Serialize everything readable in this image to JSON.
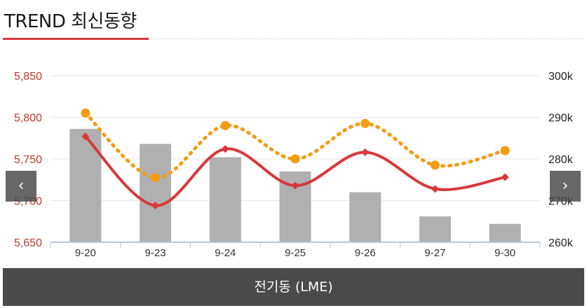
{
  "header": {
    "title": "TREND 최신동향"
  },
  "nav": {
    "prev_label": "‹",
    "next_label": "›",
    "prev_icon": "chevron-left-icon",
    "next_icon": "chevron-right-icon"
  },
  "footer": {
    "label": "전기동 (LME)"
  },
  "colors": {
    "accent": "#d8383a",
    "orange": "#f39c12",
    "bar": "#b0b0b0",
    "left_axis_text": "#c0392b"
  },
  "chart_data": {
    "type": "bar+line",
    "categories": [
      "9-20",
      "9-23",
      "9-24",
      "9-25",
      "9-26",
      "9-27",
      "9-30"
    ],
    "left_axis": {
      "ticks": [
        5650,
        5700,
        5750,
        5800,
        5850
      ],
      "tick_labels": [
        "5,650",
        "5,700",
        "5,750",
        "5,800",
        "5,850"
      ],
      "ylim": [
        5650,
        5850
      ]
    },
    "right_axis": {
      "ticks": [
        260,
        270,
        280,
        290,
        300
      ],
      "tick_labels": [
        "260k",
        "270k",
        "280k",
        "290k",
        "300k"
      ],
      "ylim": [
        260,
        300
      ]
    },
    "series": [
      {
        "type": "bar",
        "axis": "left",
        "color": "#b0b0b0",
        "values": [
          5786,
          5768,
          5752,
          5735,
          5710,
          5681,
          5672
        ]
      },
      {
        "type": "line",
        "axis": "left",
        "color": "#d8383a",
        "style": "solid",
        "values": [
          5777,
          5694,
          5762,
          5718,
          5758,
          5714,
          5728
        ]
      },
      {
        "type": "line",
        "axis": "right",
        "color": "#f39c12",
        "style": "dotted",
        "values": [
          291.0,
          275.5,
          288.0,
          280.0,
          288.5,
          278.5,
          282.0
        ]
      }
    ],
    "grid": true
  }
}
